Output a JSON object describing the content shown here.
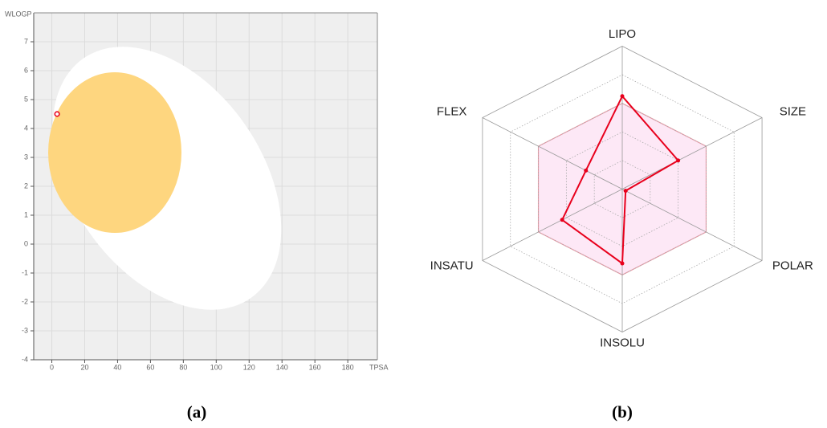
{
  "chart_data": [
    {
      "type": "scatter",
      "caption": "(a)",
      "xlabel": "TPSA",
      "ylabel": "WLOGP",
      "x": [
        3.2
      ],
      "values": [
        4.5
      ],
      "color": "#e8001c",
      "xlim": [
        -11,
        198
      ],
      "ylim": [
        -4,
        8
      ],
      "xticks": [
        0,
        20,
        40,
        60,
        80,
        100,
        120,
        140,
        160,
        180
      ],
      "yticks": [
        -4,
        -3,
        -2,
        -1,
        0,
        1,
        2,
        3,
        4,
        5,
        6,
        7
      ],
      "grid": true
    },
    {
      "type": "radar",
      "caption": "(b)",
      "categories": [
        "LIPO",
        "SIZE",
        "POLAR",
        "INSOLU",
        "INSATU",
        "FLEX"
      ],
      "values": [
        3.25,
        2.0,
        0.12,
        2.6,
        2.15,
        1.3
      ],
      "color": "#e8001c",
      "rlim": [
        0,
        5
      ],
      "rticks": [
        1,
        2,
        3,
        4,
        5
      ],
      "optimal": 3
    }
  ]
}
